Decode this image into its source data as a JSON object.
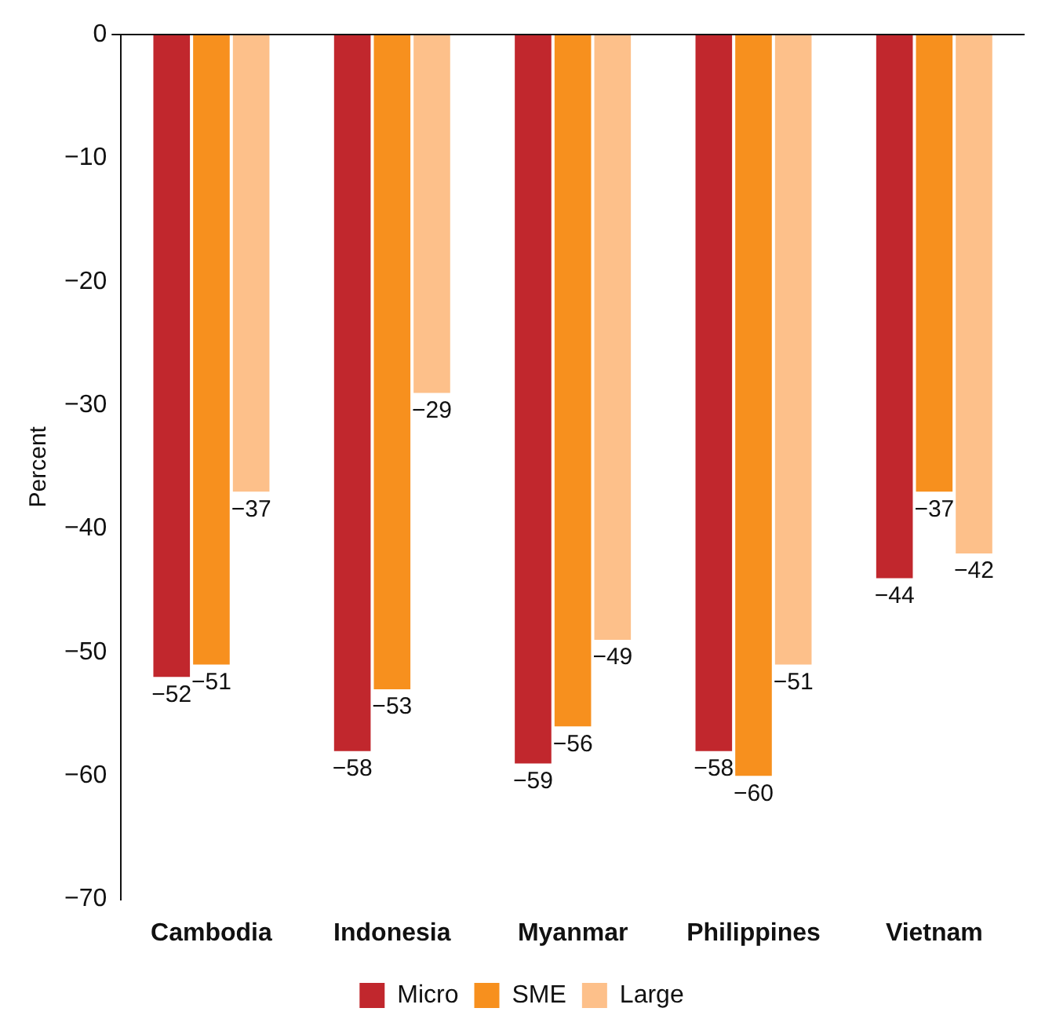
{
  "chart_data": {
    "type": "bar",
    "ylabel": "Percent",
    "categories": [
      "Cambodia",
      "Indonesia",
      "Myanmar",
      "Philippines",
      "Vietnam"
    ],
    "series": [
      {
        "name": "Micro",
        "color": "#c1272d",
        "values": [
          -52,
          -58,
          -59,
          -58,
          -44
        ]
      },
      {
        "name": "SME",
        "color": "#f7901e",
        "values": [
          -51,
          -53,
          -56,
          -60,
          -37
        ]
      },
      {
        "name": "Large",
        "color": "#fdc08a",
        "values": [
          -37,
          -29,
          -49,
          -51,
          -42
        ]
      }
    ],
    "ylim": [
      -70,
      0
    ],
    "yticks": [
      0,
      -10,
      -20,
      -30,
      -40,
      -50,
      -60,
      -70
    ],
    "data_labels": true,
    "legend": "bottom",
    "grid": false
  }
}
